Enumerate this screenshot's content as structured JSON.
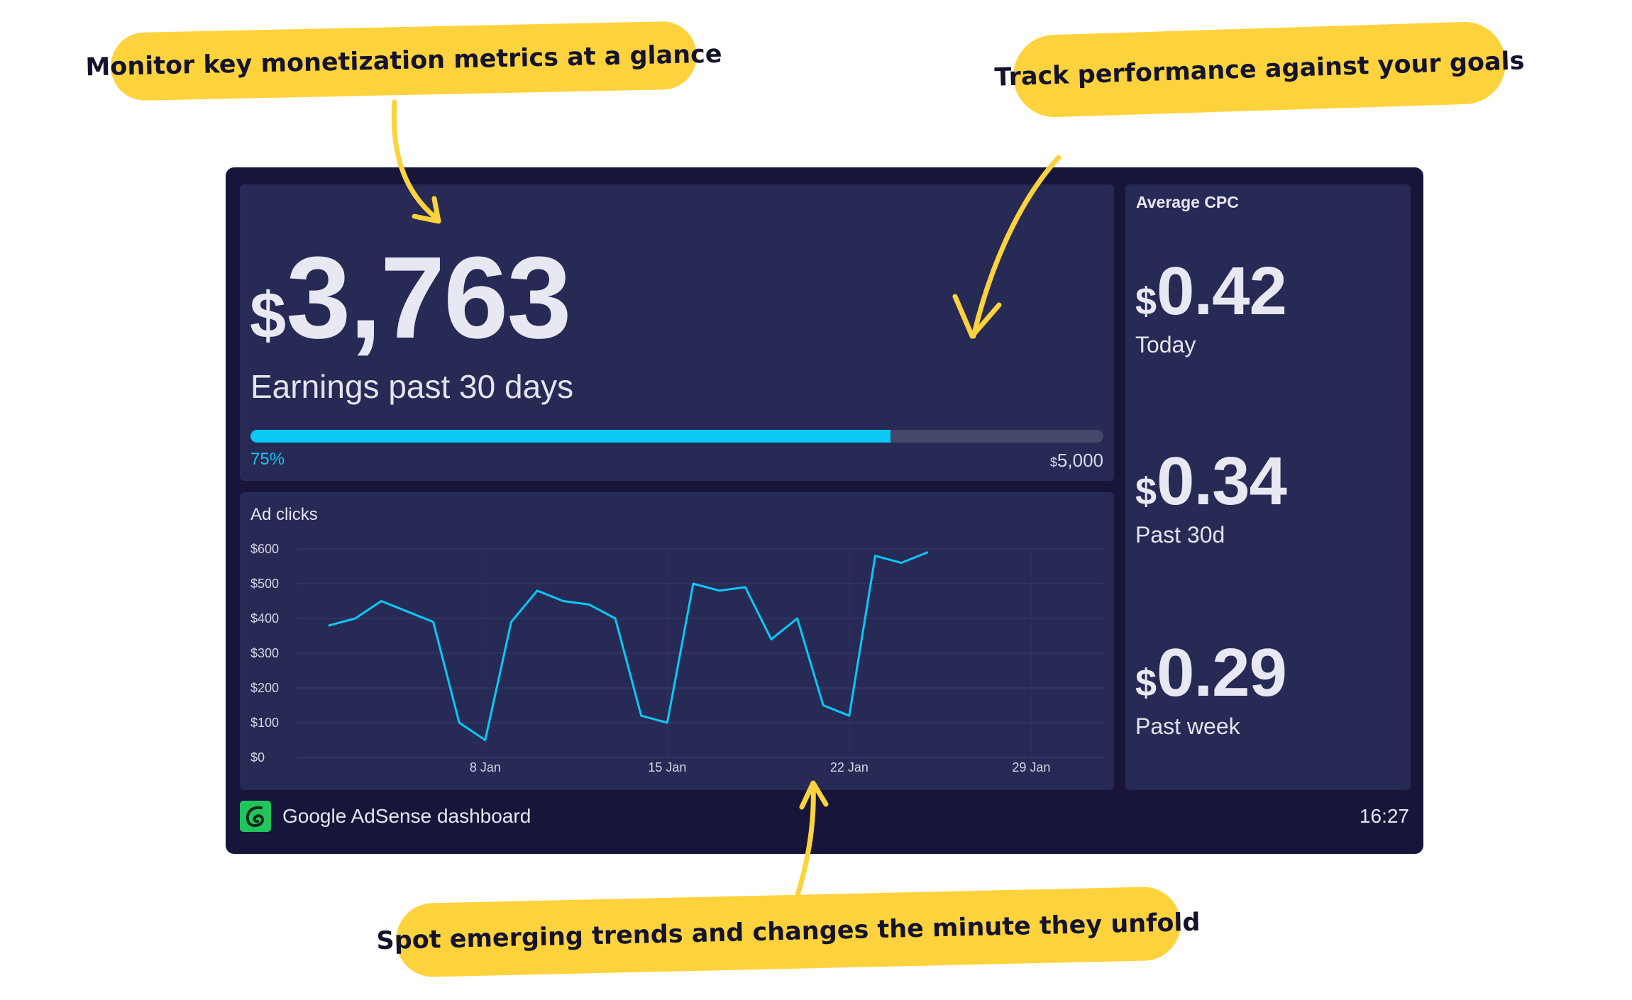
{
  "callouts": {
    "monitor": "Monitor key monetization metrics at a glance",
    "track": "Track performance against your goals",
    "spot": "Spot emerging trends and changes the minute they unfold"
  },
  "earnings": {
    "currency": "$",
    "value": "3,763",
    "label": "Earnings past 30 days",
    "progress_fraction": 0.75,
    "progress_label": "75%",
    "goal_currency": "$",
    "goal_value": "5,000"
  },
  "cpc": {
    "title": "Average CPC",
    "items": [
      {
        "currency": "$",
        "value": "0.42",
        "label": "Today"
      },
      {
        "currency": "$",
        "value": "0.34",
        "label": "Past 30d"
      },
      {
        "currency": "$",
        "value": "0.29",
        "label": "Past week"
      }
    ]
  },
  "footer": {
    "title": "Google AdSense dashboard",
    "time": "16:27"
  },
  "colors": {
    "frame": "#17163a",
    "panel": "#272a55",
    "accent": "#0bc8f4",
    "callout": "#fdd33d",
    "logo": "#21c55d"
  },
  "chart_data": {
    "type": "line",
    "title": "Ad clicks",
    "ylim": [
      0,
      600
    ],
    "yticks": [
      "$0",
      "$100",
      "$200",
      "$300",
      "$400",
      "$500",
      "$600"
    ],
    "xticks": [
      {
        "label": "8 Jan",
        "day": 8
      },
      {
        "label": "15 Jan",
        "day": 15
      },
      {
        "label": "22 Jan",
        "day": 22
      },
      {
        "label": "29 Jan",
        "day": 29
      }
    ],
    "xlim_days": [
      0.8,
      31.8
    ],
    "grid": true,
    "series": [
      {
        "days": [
          2,
          3,
          4,
          5,
          6,
          7,
          8,
          9,
          10,
          11,
          12,
          13,
          14,
          15,
          16,
          17,
          18,
          19,
          20,
          21,
          22,
          23,
          24,
          25
        ],
        "values": [
          380,
          400,
          450,
          420,
          390,
          100,
          50,
          390,
          480,
          450,
          440,
          400,
          120,
          100,
          500,
          480,
          490,
          340,
          400,
          150,
          120,
          580,
          560,
          590
        ]
      }
    ]
  }
}
